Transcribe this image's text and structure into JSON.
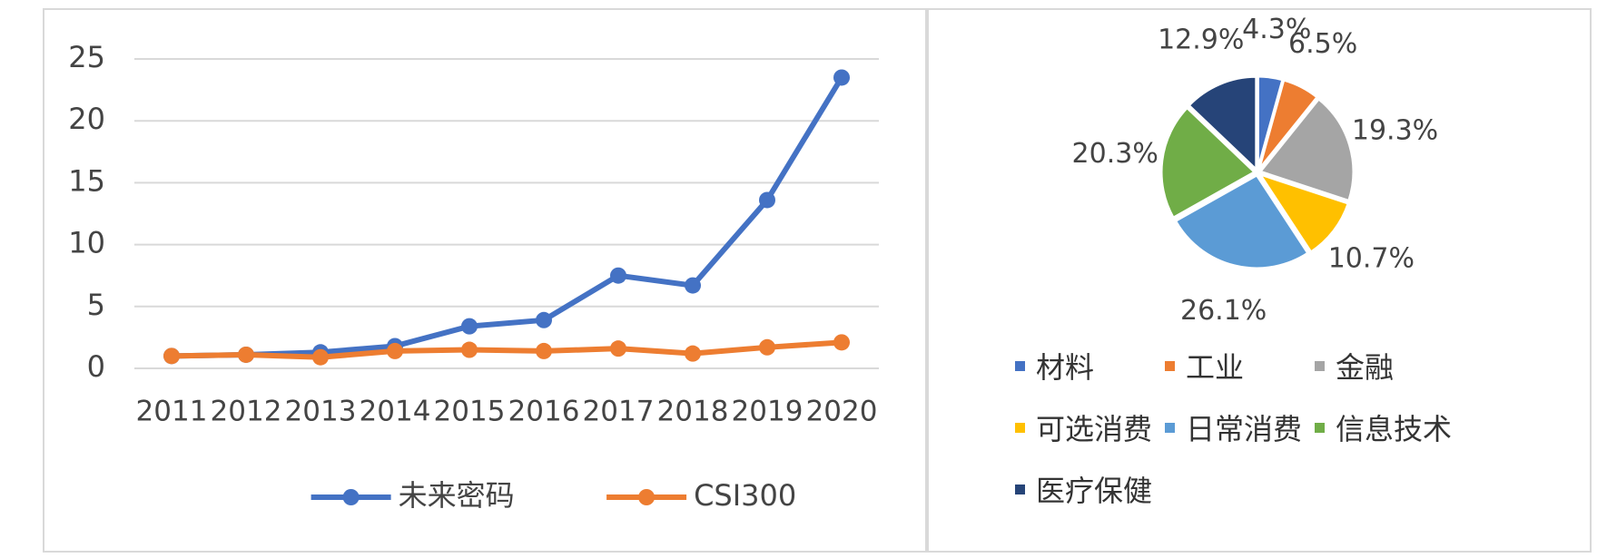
{
  "chart_data": [
    {
      "type": "line",
      "categories": [
        "2011",
        "2012",
        "2013",
        "2014",
        "2015",
        "2016",
        "2017",
        "2018",
        "2019",
        "2020"
      ],
      "series": [
        {
          "name": "未来密码",
          "color": "#4472c4",
          "values": [
            1.0,
            1.1,
            1.3,
            1.8,
            3.4,
            3.9,
            7.5,
            6.7,
            13.6,
            23.5
          ]
        },
        {
          "name": "CSI300",
          "color": "#ed7d31",
          "values": [
            1.0,
            1.1,
            0.9,
            1.4,
            1.5,
            1.4,
            1.6,
            1.2,
            1.7,
            2.1
          ]
        }
      ],
      "ylim": [
        0,
        25
      ],
      "yticks": [
        0,
        5,
        10,
        15,
        20,
        25
      ],
      "grid": true,
      "legend": "bottom"
    },
    {
      "type": "pie",
      "categories": [
        "材料",
        "工业",
        "金融",
        "可选消费",
        "日常消费",
        "信息技术",
        "医疗保健"
      ],
      "values": [
        4.3,
        6.5,
        19.3,
        10.7,
        26.1,
        20.3,
        12.9
      ],
      "value_labels": [
        "4.3%",
        "6.5%",
        "19.3%",
        "10.7%",
        "26.1%",
        "20.3%",
        "12.9%"
      ],
      "colors": [
        "#4472c4",
        "#ed7d31",
        "#a5a5a5",
        "#ffc000",
        "#5b9bd5",
        "#70ad47",
        "#264478"
      ],
      "legend": "bottom"
    }
  ]
}
